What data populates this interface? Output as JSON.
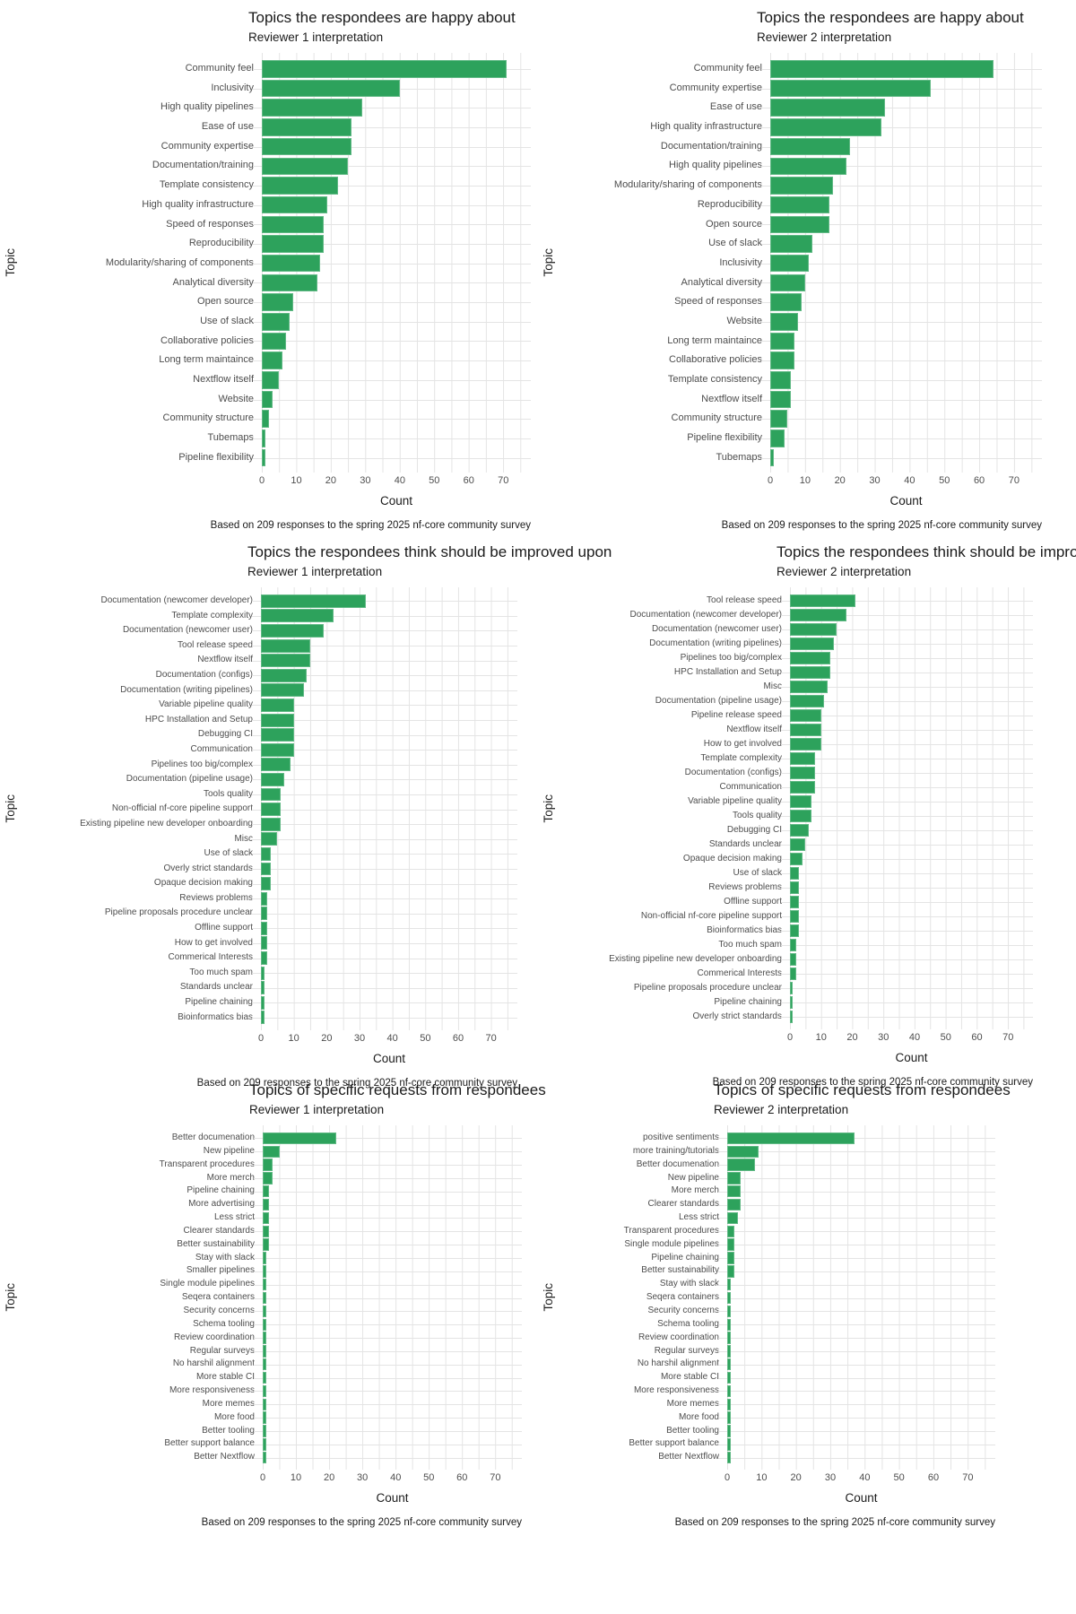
{
  "style": {
    "bar_color": "#2DA25C",
    "grid_color": "#E4E4E4",
    "label_color": "#4D4D4D",
    "title_color": "#1A1A1A",
    "background": "#FFFFFF"
  },
  "caption": "Based on 209 responses to the spring 2025 nf-core community survey",
  "chart_data": [
    {
      "type": "bar",
      "orientation": "horizontal",
      "title": "Topics the respondees are happy about",
      "subtitle": "Reviewer 1 interpretation",
      "xlabel": "Count",
      "ylabel": "Topic",
      "caption": "Based on 209 responses to the spring 2025 nf-core community survey",
      "x_ticks": [
        0,
        10,
        20,
        30,
        40,
        50,
        60,
        70
      ],
      "xlim": [
        0,
        78
      ],
      "grid": true,
      "categories": [
        "Community feel",
        "Inclusivity",
        "High quality pipelines",
        "Ease of use",
        "Community expertise",
        "Documentation/training",
        "Template consistency",
        "High quality infrastructure",
        "Speed of responses",
        "Reproducibility",
        "Modularity/sharing of components",
        "Analytical diversity",
        "Open source",
        "Use of slack",
        "Collaborative policies",
        "Long term maintaince",
        "Nextflow itself",
        "Website",
        "Community structure",
        "Tubemaps",
        "Pipeline flexibility"
      ],
      "values": [
        71,
        40,
        29,
        26,
        26,
        25,
        22,
        19,
        18,
        18,
        17,
        16,
        9,
        8,
        7,
        6,
        5,
        3,
        2,
        1,
        1
      ]
    },
    {
      "type": "bar",
      "orientation": "horizontal",
      "title": "Topics the respondees are happy about",
      "subtitle": "Reviewer 2 interpretation",
      "xlabel": "Count",
      "ylabel": "Topic",
      "caption": "Based on 209 responses to the spring 2025 nf-core community survey",
      "x_ticks": [
        0,
        10,
        20,
        30,
        40,
        50,
        60,
        70
      ],
      "xlim": [
        0,
        78
      ],
      "grid": true,
      "categories": [
        "Community feel",
        "Community expertise",
        "Ease of use",
        "High quality infrastructure",
        "Documentation/training",
        "High quality pipelines",
        "Modularity/sharing of components",
        "Reproducibility",
        "Open source",
        "Use of slack",
        "Inclusivity",
        "Analytical diversity",
        "Speed of responses",
        "Website",
        "Long term maintaince",
        "Collaborative policies",
        "Template consistency",
        "Nextflow itself",
        "Community structure",
        "Pipeline flexibility",
        "Tubemaps"
      ],
      "values": [
        64,
        46,
        33,
        32,
        23,
        22,
        18,
        17,
        17,
        12,
        11,
        10,
        9,
        8,
        7,
        7,
        6,
        6,
        5,
        4,
        1
      ]
    },
    {
      "type": "bar",
      "orientation": "horizontal",
      "title": "Topics the respondees think should be improved upon",
      "subtitle": "Reviewer 1 interpretation",
      "xlabel": "Count",
      "ylabel": "Topic",
      "caption": "Based on 209 responses to the spring 2025 nf-core community survey",
      "x_ticks": [
        0,
        10,
        20,
        30,
        40,
        50,
        60,
        70
      ],
      "xlim": [
        0,
        78
      ],
      "grid": true,
      "categories": [
        "Documentation (newcomer developer)",
        "Template complexity",
        "Documentation (newcomer user)",
        "Tool release speed",
        "Nextflow itself",
        "Documentation (configs)",
        "Documentation (writing pipelines)",
        "Variable pipeline quality",
        "HPC Installation and Setup",
        "Debugging CI",
        "Communication",
        "Pipelines too big/complex",
        "Documentation (pipeline usage)",
        "Tools quality",
        "Non-official nf-core pipeline support",
        "Existing pipeline new developer onboarding",
        "Misc",
        "Use of slack",
        "Overly strict standards",
        "Opaque decision making",
        "Reviews problems",
        "Pipeline proposals procedure unclear",
        "Offline support",
        "How to get involved",
        "Commerical Interests",
        "Too much spam",
        "Standards unclear",
        "Pipeline chaining",
        "Bioinformatics bias"
      ],
      "values": [
        32,
        22,
        19,
        15,
        15,
        14,
        13,
        10,
        10,
        10,
        10,
        9,
        7,
        6,
        6,
        6,
        5,
        3,
        3,
        3,
        2,
        2,
        2,
        2,
        2,
        1,
        1,
        1,
        1
      ]
    },
    {
      "type": "bar",
      "orientation": "horizontal",
      "title": "Topics the respondees think should be improved upon",
      "subtitle": "Reviewer 2 interpretation",
      "xlabel": "Count",
      "ylabel": "Topic",
      "caption": "Based on 209 responses to the spring 2025 nf-core community survey",
      "x_ticks": [
        0,
        10,
        20,
        30,
        40,
        50,
        60,
        70
      ],
      "xlim": [
        0,
        78
      ],
      "grid": true,
      "categories": [
        "Tool release speed",
        "Documentation (newcomer developer)",
        "Documentation (newcomer user)",
        "Documentation (writing pipelines)",
        "Pipelines too big/complex",
        "HPC Installation and Setup",
        "Misc",
        "Documentation (pipeline usage)",
        "Pipeline release speed",
        "Nextflow itself",
        "How to get involved",
        "Template complexity",
        "Documentation (configs)",
        "Communication",
        "Variable pipeline quality",
        "Tools quality",
        "Debugging CI",
        "Standards unclear",
        "Opaque decision making",
        "Use of slack",
        "Reviews problems",
        "Offline support",
        "Non-official nf-core pipeline support",
        "Bioinformatics bias",
        "Too much spam",
        "Existing pipeline new developer onboarding",
        "Commerical Interests",
        "Pipeline proposals procedure unclear",
        "Pipeline chaining",
        "Overly strict standards"
      ],
      "values": [
        21,
        18,
        15,
        14,
        13,
        13,
        12,
        11,
        10,
        10,
        10,
        8,
        8,
        8,
        7,
        7,
        6,
        5,
        4,
        3,
        3,
        3,
        3,
        3,
        2,
        2,
        2,
        1,
        1,
        1
      ]
    },
    {
      "type": "bar",
      "orientation": "horizontal",
      "title": "Topics of specific requests from respondees",
      "subtitle": "Reviewer 1 interpretation",
      "xlabel": "Count",
      "ylabel": "Topic",
      "caption": "Based on 209 responses to the spring 2025 nf-core community survey",
      "x_ticks": [
        0,
        10,
        20,
        30,
        40,
        50,
        60,
        70
      ],
      "xlim": [
        0,
        78
      ],
      "grid": true,
      "categories": [
        "Better documenation",
        "New pipeline",
        "Transparent procedures",
        "More merch",
        "Pipeline chaining",
        "More advertising",
        "Less strict",
        "Clearer standards",
        "Better sustainability",
        "Stay with slack",
        "Smaller pipelines",
        "Single module pipelines",
        "Seqera containers",
        "Security concerns",
        "Schema tooling",
        "Review coordination",
        "Regular surveys",
        "No harshil alignment",
        "More stable CI",
        "More responsiveness",
        "More memes",
        "More food",
        "Better tooling",
        "Better support balance",
        "Better Nextflow"
      ],
      "values": [
        22,
        5,
        3,
        3,
        2,
        2,
        2,
        2,
        2,
        1,
        1,
        1,
        1,
        1,
        1,
        1,
        1,
        1,
        1,
        1,
        1,
        1,
        1,
        1,
        1
      ]
    },
    {
      "type": "bar",
      "orientation": "horizontal",
      "title": "Topics of specific requests from respondees",
      "subtitle": "Reviewer 2 interpretation",
      "xlabel": "Count",
      "ylabel": "Topic",
      "caption": "Based on 209 responses to the spring 2025 nf-core community survey",
      "x_ticks": [
        0,
        10,
        20,
        30,
        40,
        50,
        60,
        70
      ],
      "xlim": [
        0,
        78
      ],
      "grid": true,
      "categories": [
        "positive sentiments",
        "more training/tutorials",
        "Better documenation",
        "New pipeline",
        "More merch",
        "Clearer standards",
        "Less strict",
        "Transparent procedures",
        "Single module pipelines",
        "Pipeline chaining",
        "Better sustainability",
        "Stay with slack",
        "Seqera containers",
        "Security concerns",
        "Schema tooling",
        "Review coordination",
        "Regular surveys",
        "No harshil alignment",
        "More stable CI",
        "More responsiveness",
        "More memes",
        "More food",
        "Better tooling",
        "Better support balance",
        "Better Nextflow"
      ],
      "values": [
        37,
        9,
        8,
        4,
        4,
        4,
        3,
        2,
        2,
        2,
        2,
        1,
        1,
        1,
        1,
        1,
        1,
        1,
        1,
        1,
        1,
        1,
        1,
        1,
        1
      ]
    }
  ]
}
